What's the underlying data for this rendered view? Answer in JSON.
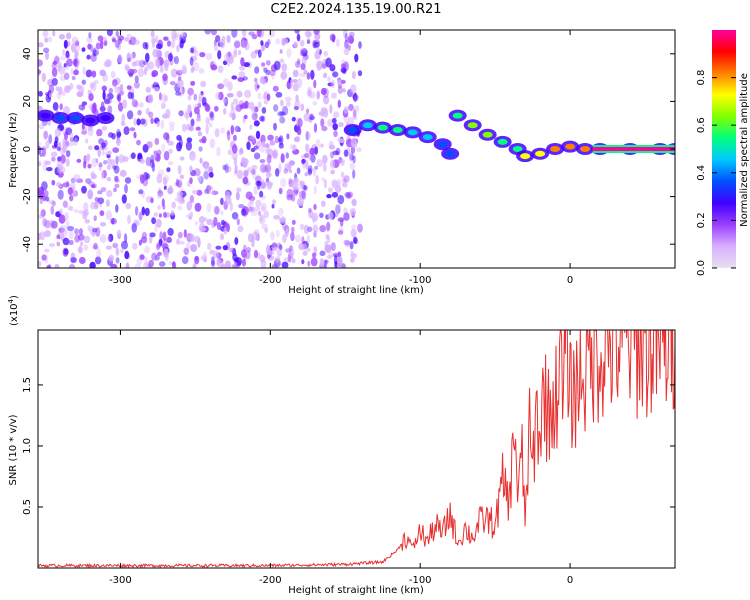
{
  "title": "C2E2.2024.135.19.00.R21",
  "colors": {
    "snr_line": "#e83030",
    "spectrogram_noise": "#7b00ff",
    "colormap": [
      "#e8e0f0",
      "#d8b0ff",
      "#9a40ff",
      "#4000ff",
      "#0050ff",
      "#00c8ff",
      "#00ff80",
      "#80ff00",
      "#ffff00",
      "#ff8000",
      "#ff0000",
      "#ff00a0"
    ]
  },
  "chart_data": [
    {
      "type": "heatmap",
      "xlabel": "Height of straight line (km)",
      "ylabel": "Frequency (Hz)",
      "xlim": [
        -355,
        70
      ],
      "ylim": [
        -50,
        50
      ],
      "xticks": [
        -300,
        -200,
        -100,
        0
      ],
      "xtick_labels": [
        "-300",
        "-200",
        "-100",
        "0"
      ],
      "yticks": [
        -40,
        -20,
        0,
        20,
        40
      ],
      "ytick_labels": [
        "-40",
        "-20",
        "0",
        "20",
        "40"
      ],
      "noise_region_x": [
        -355,
        -140
      ],
      "signal_track": [
        {
          "x": -350,
          "y": 14,
          "amp": 0.3
        },
        {
          "x": -340,
          "y": 13,
          "amp": 0.35
        },
        {
          "x": -330,
          "y": 13,
          "amp": 0.4
        },
        {
          "x": -320,
          "y": 12,
          "amp": 0.3
        },
        {
          "x": -310,
          "y": 13,
          "amp": 0.25
        },
        {
          "x": -145,
          "y": 8,
          "amp": 0.35
        },
        {
          "x": -135,
          "y": 10,
          "amp": 0.45
        },
        {
          "x": -125,
          "y": 9,
          "amp": 0.5
        },
        {
          "x": -115,
          "y": 8,
          "amp": 0.5
        },
        {
          "x": -105,
          "y": 7,
          "amp": 0.45
        },
        {
          "x": -95,
          "y": 5,
          "amp": 0.45
        },
        {
          "x": -85,
          "y": 2,
          "amp": 0.4
        },
        {
          "x": -80,
          "y": -2,
          "amp": 0.35
        },
        {
          "x": -75,
          "y": 14,
          "amp": 0.5
        },
        {
          "x": -65,
          "y": 10,
          "amp": 0.6
        },
        {
          "x": -55,
          "y": 6,
          "amp": 0.6
        },
        {
          "x": -45,
          "y": 3,
          "amp": 0.55
        },
        {
          "x": -35,
          "y": 0,
          "amp": 0.55
        },
        {
          "x": -30,
          "y": -3,
          "amp": 0.7
        },
        {
          "x": -20,
          "y": -2,
          "amp": 0.75
        },
        {
          "x": -10,
          "y": 0,
          "amp": 0.8
        },
        {
          "x": 0,
          "y": 1,
          "amp": 0.85
        },
        {
          "x": 10,
          "y": 0,
          "amp": 0.85
        },
        {
          "x": 20,
          "y": 0,
          "amp": 0.95
        },
        {
          "x": 40,
          "y": 0,
          "amp": 0.97
        },
        {
          "x": 60,
          "y": 0,
          "amp": 0.98
        },
        {
          "x": 70,
          "y": 0,
          "amp": 0.98
        }
      ],
      "colorbar": {
        "label": "Normalized spectral amplitude",
        "range": [
          0,
          1
        ],
        "ticks": [
          0.0,
          0.2,
          0.4,
          0.6,
          0.8
        ],
        "tick_labels": [
          "0.0",
          "0.2",
          "0.4",
          "0.6",
          "0.8"
        ]
      }
    },
    {
      "type": "line",
      "xlabel": "Height of straight line (km)",
      "ylabel": "SNR (10 * v/v)",
      "y_scale_label": "(x10",
      "y_scale_exp": "4",
      "y_scale_close": ")",
      "xlim": [
        -355,
        70
      ],
      "ylim": [
        0,
        19500
      ],
      "xticks": [
        -300,
        -200,
        -100,
        0
      ],
      "xtick_labels": [
        "-300",
        "-200",
        "-100",
        "0"
      ],
      "yticks": [
        5000,
        10000,
        15000
      ],
      "ytick_labels": [
        "0.5",
        "1.0",
        "1.5"
      ],
      "series": [
        {
          "x": [
            -355,
            -300,
            -250,
            -200,
            -150,
            -125,
            -115,
            -110,
            -105,
            -100,
            -95,
            -90,
            -85,
            -80,
            -75,
            -70,
            -65,
            -60,
            -55,
            -50,
            -45,
            -40,
            -37,
            -35,
            -32,
            -30,
            -27,
            -25,
            -22,
            -20,
            -17,
            -15,
            -12,
            -10,
            -7,
            -5,
            -2,
            0,
            3,
            5,
            8,
            10,
            15,
            20,
            25,
            30,
            40,
            50,
            60,
            70
          ],
          "values": [
            200,
            200,
            200,
            200,
            300,
            500,
            1500,
            2500,
            1800,
            3000,
            2200,
            3500,
            2800,
            4500,
            2000,
            3200,
            2500,
            3800,
            4000,
            3500,
            7000,
            5500,
            12500,
            6000,
            9000,
            4000,
            11000,
            8000,
            13000,
            10500,
            15500,
            12000,
            14000,
            13000,
            17500,
            13500,
            19500,
            14000,
            15000,
            14500,
            17000,
            16000,
            17500,
            18000,
            18200,
            18300,
            18400,
            18400,
            18300,
            18500
          ]
        }
      ]
    }
  ]
}
